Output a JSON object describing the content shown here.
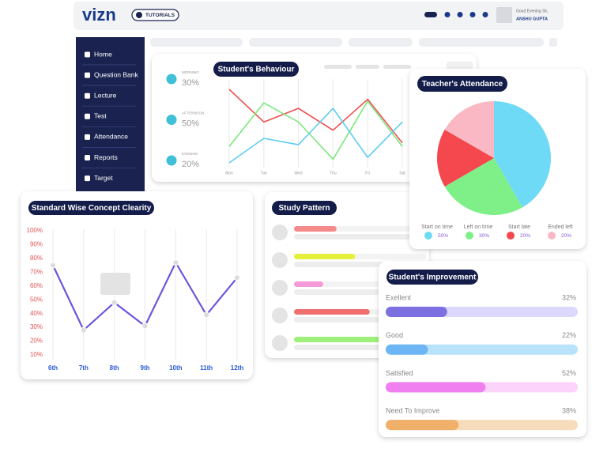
{
  "header": {
    "logo": "vizn",
    "tutorials": "TUTORIALS",
    "greeting": "Good Evening Sir,",
    "user": "ANSHU GUPTA"
  },
  "sidebar": {
    "items": [
      "Home",
      "Question Bank",
      "Lecture",
      "Test",
      "Attendance",
      "Reports",
      "Target"
    ]
  },
  "behaviour_periods": [
    {
      "label": "MORNING",
      "value": "30%"
    },
    {
      "label": "AFTERNOON",
      "value": "50%"
    },
    {
      "label": "EVENING",
      "value": "20%"
    }
  ],
  "chart_data": [
    {
      "type": "line",
      "title": "Student's Behaviour",
      "categories": [
        "Mon",
        "Tue",
        "Wed",
        "Thu",
        "Fri",
        "Sat"
      ],
      "series": [
        {
          "color": "#ef4f4f",
          "values": [
            86,
            50,
            65,
            41,
            75,
            27
          ]
        },
        {
          "color": "#7be87b",
          "values": [
            23,
            71,
            50,
            9,
            73,
            23
          ]
        },
        {
          "color": "#5ccdf0",
          "values": [
            5,
            32,
            25,
            65,
            11,
            50
          ]
        }
      ]
    },
    {
      "type": "pie",
      "title": "Teacher's Attendance",
      "categories": [
        "Start on time",
        "Left on time",
        "Start late",
        "Ended left"
      ],
      "values": [
        50,
        30,
        20,
        20
      ],
      "value_labels": [
        "50%",
        "30%",
        "20%",
        "20%"
      ],
      "colors": [
        "#6fdaf5",
        "#7ef087",
        "#f5474e",
        "#f9b8c4"
      ]
    },
    {
      "type": "line",
      "title": "Standard Wise Concept Clearity",
      "categories": [
        "6th",
        "7th",
        "8th",
        "9th",
        "10th",
        "11th",
        "12th"
      ],
      "values": [
        75,
        28,
        48,
        31,
        77,
        39,
        66
      ],
      "color": "#6f55d9",
      "markers": true,
      "ylim": [
        10,
        100
      ],
      "yticks": [
        {
          "value": 10,
          "label": "10%"
        },
        {
          "value": 20,
          "label": "20%"
        },
        {
          "value": 30,
          "label": "30%"
        },
        {
          "value": 40,
          "label": "40%"
        },
        {
          "value": 50,
          "label": "50%"
        },
        {
          "value": 60,
          "label": "60%"
        },
        {
          "value": 70,
          "label": "70%"
        },
        {
          "value": 80,
          "label": "80%"
        },
        {
          "value": 90,
          "label": "90%"
        },
        {
          "value": 100,
          "label": "100%"
        }
      ]
    },
    {
      "type": "bar",
      "title": "Study Pattern",
      "values": [
        32,
        46,
        22,
        57,
        70
      ],
      "xlim": [
        0,
        100
      ],
      "colors": [
        "#f58a8a",
        "#e6f03c",
        "#f59ad8",
        "#f07070",
        "#9ef07a"
      ]
    },
    {
      "type": "bar",
      "title": "Student's Improvement",
      "categories": [
        "Exellent",
        "Good",
        "Satisfied",
        "Need To Improve"
      ],
      "values": [
        32,
        22,
        52,
        38
      ],
      "value_labels": [
        "32%",
        "22%",
        "52%",
        "38%"
      ],
      "xlim": [
        0,
        100
      ],
      "colors": [
        "#7c6fe0",
        "#6eb5f5",
        "#f07ff0",
        "#f0b06a"
      ],
      "track_colors": [
        "#dcd8fb",
        "#b9e3fb",
        "#fbd3fb",
        "#f7dcbc"
      ]
    }
  ]
}
